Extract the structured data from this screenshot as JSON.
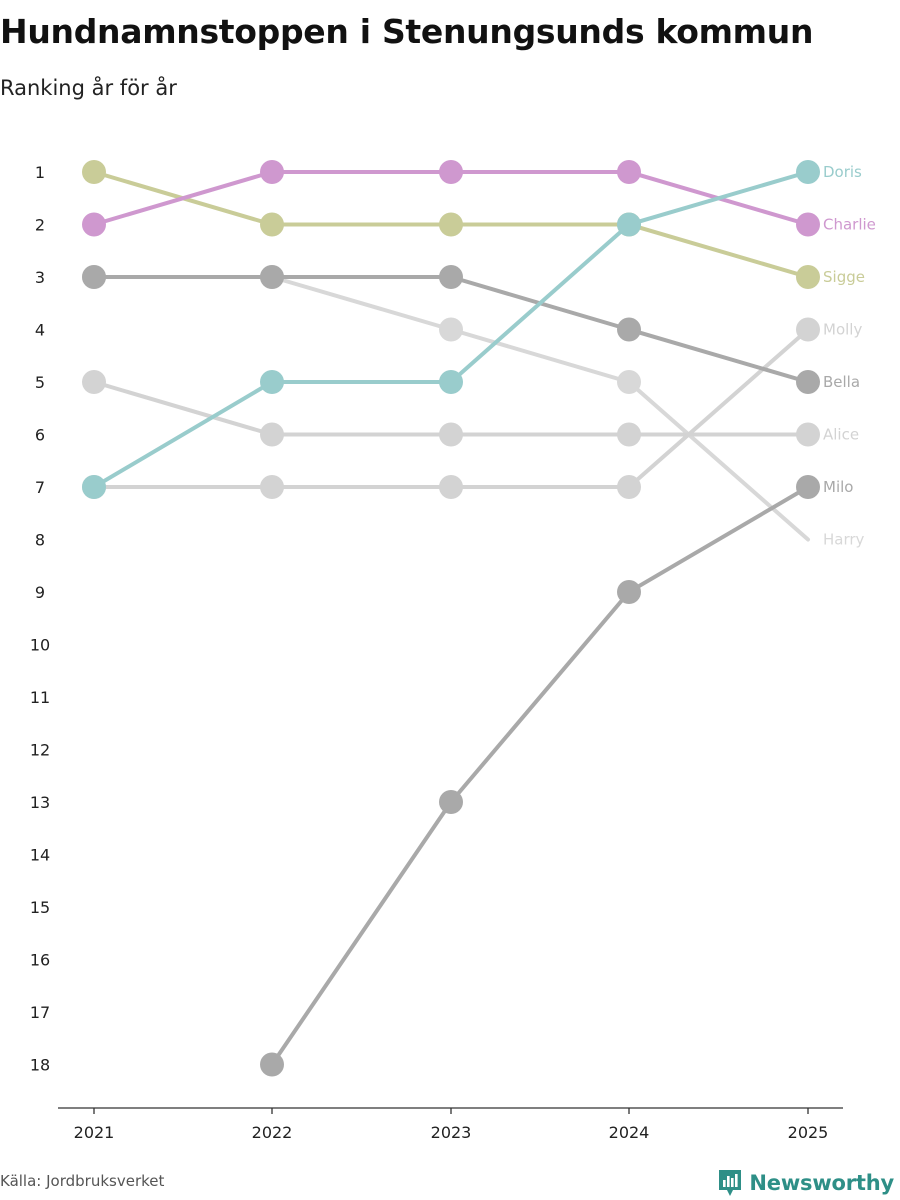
{
  "title": "Hundnamnstoppen i Stenungsunds kommun",
  "subtitle": "Ranking år för år",
  "source": "Källa: Jordbruksverket",
  "brand": "Newsworthy",
  "chart_data": {
    "type": "line",
    "subtype": "bump",
    "title": "Hundnamnstoppen i Stenungsunds kommun",
    "subtitle": "Ranking år för år",
    "x": [
      "2021",
      "2022",
      "2023",
      "2024",
      "2025"
    ],
    "y_ticks": [
      "1",
      "2",
      "3",
      "4",
      "5",
      "6",
      "7",
      "8",
      "9",
      "10",
      "11",
      "12",
      "13",
      "14",
      "15",
      "16",
      "17",
      "18"
    ],
    "ylim": [
      1,
      18
    ],
    "y_inverted": true,
    "xlabel": "",
    "ylabel": "",
    "legend": "right end labels",
    "series": [
      {
        "name": "Harry",
        "color": "#d8d8d8",
        "values": [
          3,
          3,
          4,
          5,
          8
        ]
      },
      {
        "name": "Milo",
        "color": "#a9a9a9",
        "values": [
          null,
          18,
          13,
          9,
          7
        ]
      },
      {
        "name": "Alice",
        "color": "#d3d3d3",
        "values": [
          5,
          6,
          6,
          6,
          6
        ]
      },
      {
        "name": "Molly",
        "color": "#d3d3d3",
        "values": [
          7,
          7,
          7,
          7,
          4
        ]
      },
      {
        "name": "Bella",
        "color": "#a9a9a9",
        "values": [
          3,
          3,
          3,
          4,
          5
        ]
      },
      {
        "name": "Sigge",
        "color": "#c9cc98",
        "values": [
          1,
          2,
          2,
          2,
          3
        ]
      },
      {
        "name": "Charlie",
        "color": "#cf98cf",
        "values": [
          2,
          1,
          1,
          1,
          2
        ]
      },
      {
        "name": "Doris",
        "color": "#99cccc",
        "values": [
          7,
          5,
          5,
          2,
          1
        ]
      }
    ]
  }
}
